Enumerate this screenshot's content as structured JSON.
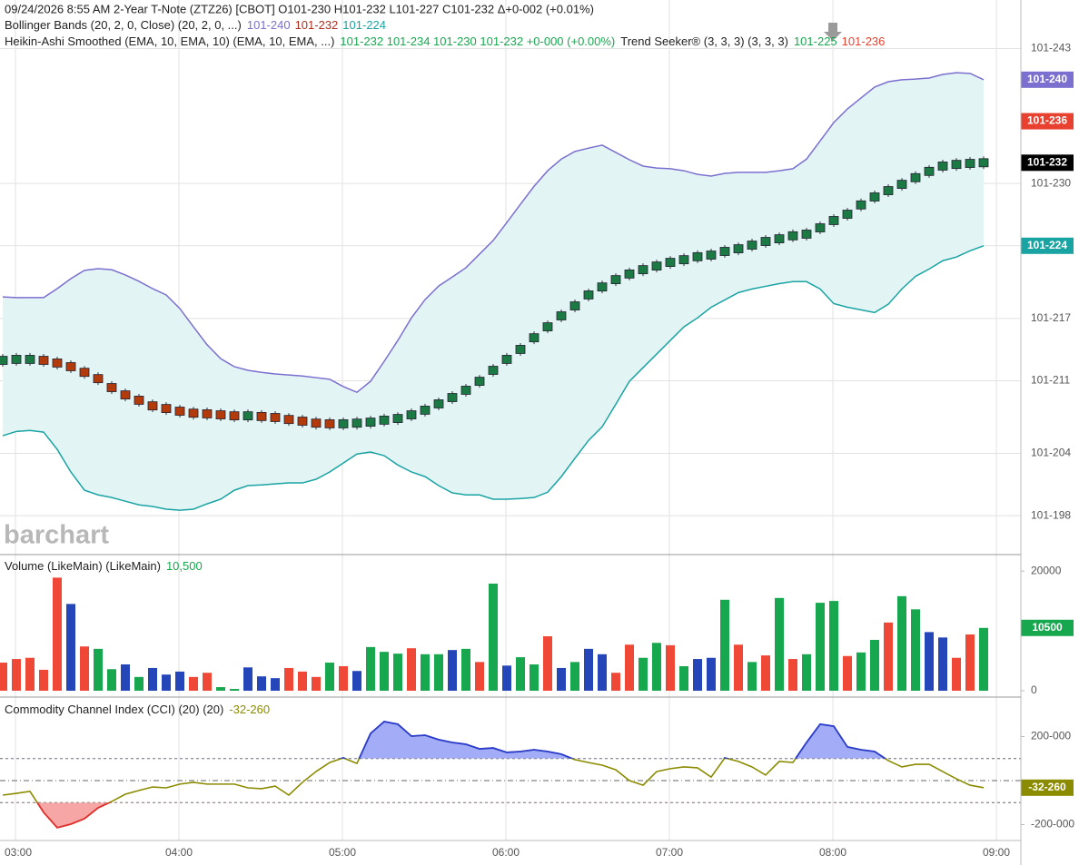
{
  "header": {
    "line1": "09/24/2026  8:55 AM 2-Year T-Note (ZTZ26) [CBOT]  O101-230 H101-232 L101-227 C101-232 Δ+0-002 (+0.01%)",
    "bb_name": "Bollinger Bands (20, 2, 0, Close)  (20, 2, 0, ...)",
    "bb_upper": "101-240",
    "bb_middle": "101-232",
    "bb_lower": "101-224",
    "ha_name": "Heikin-Ashi Smoothed (EMA, 10, EMA, 10)  (EMA, 10, EMA, ...)",
    "ha_ohlc": "101-232 101-234 101-230 101-232 +0-000 (+0.00%)",
    "ts_name": "Trend Seeker® (3, 3, 3)  (3, 3, 3)",
    "ts_up": "101-225",
    "ts_down": "101-236"
  },
  "watermark": "barchart",
  "chart_data": [
    {
      "type": "candlestick",
      "up_color": "#1b7a43",
      "down_color": "#b33a0a",
      "band_fill": "#e3f4f4",
      "upper_color": "#7b6fcf",
      "lower_color": "#1aa3a3",
      "values": [
        101.6655,
        101.6658,
        101.6658,
        101.6655,
        101.6647,
        101.6636,
        101.6619,
        101.66,
        101.6573,
        101.6551,
        101.6535,
        101.6518,
        101.651,
        101.6502,
        101.6496,
        101.6494,
        101.6491,
        101.6488,
        101.6488,
        101.6486,
        101.6483,
        101.6477,
        101.6472,
        101.6466,
        101.6464,
        101.6464,
        101.6466,
        101.6469,
        101.6475,
        101.648,
        101.6491,
        101.6505,
        101.6524,
        101.6543,
        101.6565,
        101.6592,
        101.6625,
        101.6658,
        101.6688,
        101.6723,
        101.6756,
        101.6789,
        101.6819,
        101.6852,
        101.6876,
        101.6898,
        101.6915,
        101.6928,
        101.6939,
        101.695,
        101.6958,
        101.6967,
        101.6972,
        101.6983,
        101.6991,
        101.7002,
        101.7013,
        101.7021,
        101.703,
        101.7035,
        101.7054,
        101.7076,
        101.7095,
        101.7123,
        101.7147,
        101.7166,
        101.7185,
        101.7205,
        101.7224,
        101.724,
        101.7245,
        101.7248,
        101.725
      ],
      "bb_upper": [
        101.6846,
        101.6844,
        101.6844,
        101.6844,
        101.6871,
        101.6901,
        101.6926,
        101.6931,
        101.6928,
        101.6912,
        101.6893,
        101.6871,
        101.6852,
        101.6811,
        101.6756,
        101.6702,
        101.666,
        101.6636,
        101.6625,
        101.6619,
        101.6614,
        101.6611,
        101.6608,
        101.6603,
        101.6598,
        101.6576,
        101.6559,
        101.6592,
        101.6652,
        101.6715,
        101.6783,
        101.6838,
        101.6879,
        101.6906,
        101.6934,
        101.6975,
        101.7016,
        101.707,
        101.7125,
        101.7179,
        101.7226,
        101.7261,
        101.7284,
        101.7294,
        101.7303,
        101.7281,
        101.7259,
        101.724,
        101.7234,
        101.7232,
        101.7226,
        101.7215,
        101.721,
        101.7218,
        101.7221,
        101.7221,
        101.7221,
        101.7226,
        101.7232,
        101.7261,
        101.7316,
        101.7371,
        101.7412,
        101.7445,
        101.7478,
        101.7494,
        101.75,
        101.7502,
        101.7505,
        101.7516,
        101.7521,
        101.7519,
        101.75
      ],
      "bb_lower": [
        101.6428,
        101.6441,
        101.6444,
        101.6439,
        101.6387,
        101.6319,
        101.6264,
        101.625,
        101.6242,
        101.6231,
        101.622,
        101.6215,
        101.6207,
        101.6204,
        101.6207,
        101.6223,
        101.6237,
        101.6264,
        101.6278,
        101.628,
        101.6283,
        101.6286,
        101.6286,
        101.6297,
        101.6319,
        101.6346,
        101.6373,
        101.6379,
        101.6368,
        101.634,
        101.6319,
        101.6305,
        101.6278,
        101.6256,
        101.625,
        101.625,
        101.6237,
        101.6237,
        101.6239,
        101.6242,
        101.6258,
        101.6305,
        101.636,
        101.6414,
        101.6455,
        101.6523,
        101.6592,
        101.6633,
        101.6674,
        101.6715,
        101.6756,
        101.6783,
        101.6815,
        101.6837,
        101.6859,
        101.687,
        101.6878,
        101.6886,
        101.6892,
        101.6892,
        101.687,
        101.6826,
        101.6815,
        101.6807,
        101.6799,
        101.6824,
        101.687,
        101.6908,
        101.693,
        101.6955,
        101.6966,
        101.6985,
        101.7
      ],
      "ylim": [
        101.6073,
        101.774
      ],
      "yticks": [
        {
          "value": 101.61875,
          "label": "101-198"
        },
        {
          "value": 101.6375,
          "label": "101-204"
        },
        {
          "value": 101.659375,
          "label": "101-211"
        },
        {
          "value": 101.678125,
          "label": "101-217"
        },
        {
          "value": 101.7,
          "label": "101-224"
        },
        {
          "value": 101.71875,
          "label": "101-230"
        },
        {
          "value": 101.759375,
          "label": "101-243"
        }
      ],
      "grid": true,
      "price_labels": [
        {
          "value": 101.75,
          "label": "101-240",
          "color": "#7b6fcf"
        },
        {
          "value": 101.7375,
          "label": "101-236",
          "color": "#e8412f"
        },
        {
          "value": 101.725,
          "label": "101-232",
          "color": "#000000"
        },
        {
          "value": 101.7,
          "label": "101-224",
          "color": "#1aa3a3"
        }
      ]
    },
    {
      "type": "bar",
      "title": "Volume (LikeMain)  (LikeMain)",
      "header_value": "10,500",
      "values": [
        4700,
        5300,
        5500,
        3500,
        18900,
        14500,
        7400,
        7000,
        3600,
        4400,
        2300,
        3800,
        2700,
        3200,
        2300,
        3000,
        600,
        300,
        3900,
        2400,
        2100,
        3800,
        3200,
        2300,
        4700,
        4100,
        3300,
        7300,
        6500,
        6200,
        7100,
        6100,
        6100,
        6800,
        7000,
        4800,
        17900,
        4200,
        5600,
        4400,
        9100,
        3800,
        4800,
        7000,
        6100,
        3000,
        7700,
        5500,
        8000,
        7600,
        4100,
        5300,
        5500,
        15200,
        7700,
        4800,
        5900,
        15500,
        5300,
        6100,
        14700,
        15000,
        5800,
        6400,
        8500,
        11400,
        15800,
        13600,
        9800,
        8900,
        5500,
        9400,
        10500
      ],
      "colors": [
        "#ef4836",
        "#ef4836",
        "#ef4836",
        "#ef4836",
        "#ef4836",
        "#2446b8",
        "#ef4836",
        "#17a84f",
        "#17a84f",
        "#2446b8",
        "#17a84f",
        "#2446b8",
        "#2446b8",
        "#2446b8",
        "#ef4836",
        "#ef4836",
        "#17a84f",
        "#17a84f",
        "#2446b8",
        "#2446b8",
        "#2446b8",
        "#ef4836",
        "#ef4836",
        "#ef4836",
        "#17a84f",
        "#ef4836",
        "#2446b8",
        "#17a84f",
        "#17a84f",
        "#17a84f",
        "#ef4836",
        "#17a84f",
        "#17a84f",
        "#2446b8",
        "#17a84f",
        "#ef4836",
        "#17a84f",
        "#2446b8",
        "#17a84f",
        "#17a84f",
        "#ef4836",
        "#2446b8",
        "#17a84f",
        "#2446b8",
        "#2446b8",
        "#ef4836",
        "#ef4836",
        "#17a84f",
        "#17a84f",
        "#ef4836",
        "#17a84f",
        "#2446b8",
        "#2446b8",
        "#17a84f",
        "#ef4836",
        "#17a84f",
        "#ef4836",
        "#17a84f",
        "#ef4836",
        "#17a84f",
        "#17a84f",
        "#17a84f",
        "#ef4836",
        "#17a84f",
        "#17a84f",
        "#ef4836",
        "#17a84f",
        "#17a84f",
        "#2446b8",
        "#2446b8",
        "#ef4836",
        "#ef4836",
        "#17a84f"
      ],
      "ylim": [
        0,
        22600
      ],
      "yticks": [
        0,
        20000
      ],
      "last_label": {
        "value": 10500,
        "label": "10500",
        "color": "#17a84f"
      }
    },
    {
      "type": "line",
      "title": "Commodity Channel Index (CCI) (20)  (20)",
      "header_value": "-32-260",
      "color": "#8b8b00",
      "overbought_color": "#2a3bd1",
      "overbought_fill": "#a3adf7",
      "oversold_color": "#e03030",
      "oversold_fill": "#f7a6a6",
      "values": [
        -66,
        -58,
        -49,
        -144,
        -214,
        -198,
        -173,
        -124,
        -95,
        -62,
        -45,
        -29,
        -33,
        -16,
        -8,
        -16,
        -16,
        -16,
        -33,
        -37,
        -25,
        -66,
        -8,
        41,
        82,
        103,
        78,
        214,
        268,
        256,
        202,
        206,
        186,
        173,
        165,
        144,
        148,
        128,
        132,
        140,
        132,
        120,
        95,
        82,
        70,
        49,
        0,
        -21,
        41,
        54,
        62,
        58,
        16,
        103,
        87,
        62,
        25,
        87,
        82,
        173,
        256,
        247,
        153,
        140,
        132,
        91,
        62,
        74,
        74,
        41,
        8,
        -21,
        -32.26
      ],
      "ylim": [
        -268,
        371
      ],
      "yticks": [
        {
          "value": 200,
          "label": "200-000"
        },
        {
          "value": -200,
          "label": "-200-000"
        }
      ],
      "levels": [
        100,
        0,
        -100
      ],
      "last_label": {
        "value": -32.26,
        "label": "-32-260",
        "color": "#8b8b00"
      },
      "x_labels": [
        "03:00",
        "04:00",
        "05:00",
        "06:00",
        "07:00",
        "08:00",
        "09:00"
      ]
    }
  ]
}
